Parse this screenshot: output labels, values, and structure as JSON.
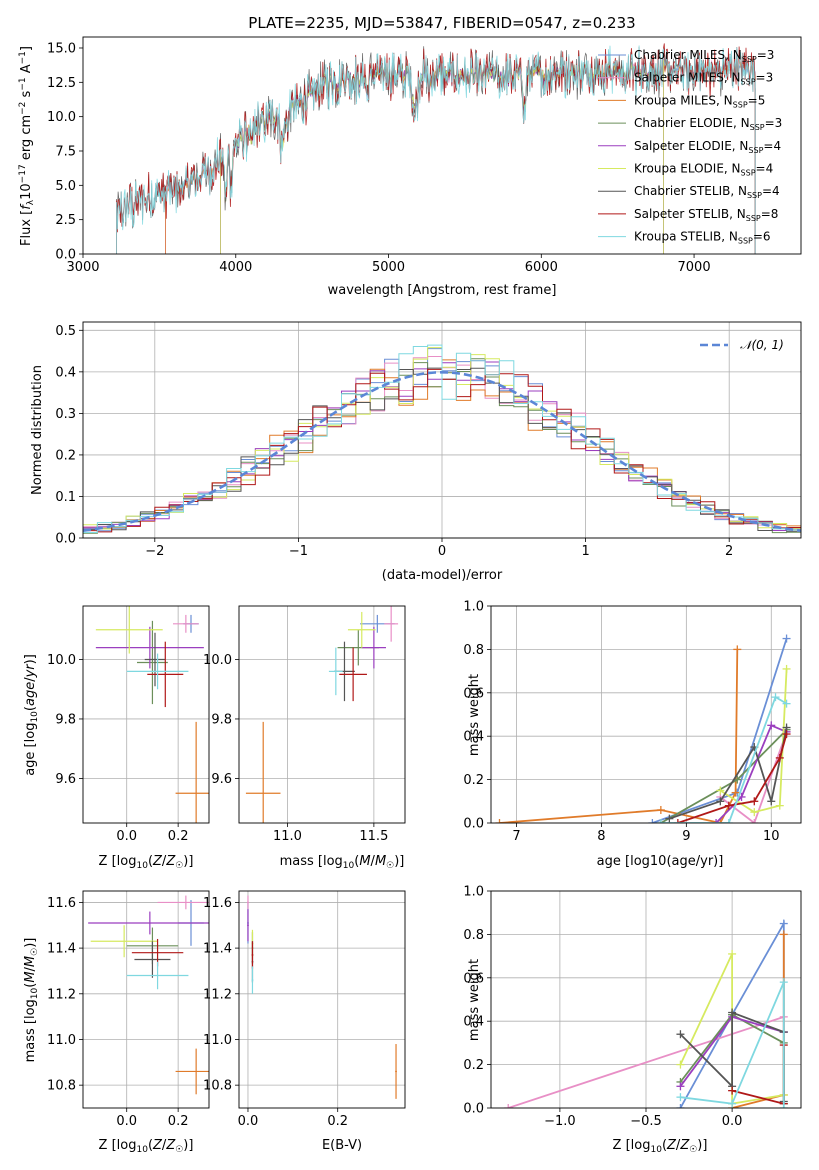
{
  "colors": {
    "Chabrier MILES": "#6a8fd6",
    "Salpeter MILES": "#e88fc6",
    "Kroupa MILES": "#e07b2a",
    "Chabrier ELODIE": "#6b8f5a",
    "Salpeter ELODIE": "#9b3fbf",
    "Kroupa ELODIE": "#d6ea60",
    "Chabrier STELIB": "#555555",
    "Salpeter STELIB": "#b01818",
    "Kroupa STELIB": "#7fd8e0",
    "normal": "#5b86d6"
  },
  "chart_data": [
    {
      "id": "spectrum",
      "type": "line",
      "title": "PLATE=2235, MJD=53847, FIBERID=0547, z=0.233",
      "xlabel": "wavelength [Angstrom, rest frame]",
      "ylabel": "Flux [f_λ 10^-17 erg cm^-2 s^-1 A^-1]",
      "xlim": [
        3000,
        7700
      ],
      "ylim": [
        0,
        15.8
      ],
      "xticks": [
        3000,
        4000,
        5000,
        6000,
        7000
      ],
      "yticks": [
        0.0,
        2.5,
        5.0,
        7.5,
        10.0,
        12.5,
        15.0
      ],
      "ytick_labels": [
        "0.0",
        "2.5",
        "5.0",
        "7.5",
        "10.0",
        "12.5",
        "15.0"
      ],
      "legend_position": "top-right",
      "legend": [
        {
          "name": "Chabrier MILES",
          "nssp": "3"
        },
        {
          "name": "Salpeter MILES",
          "nssp": "3"
        },
        {
          "name": "Kroupa MILES",
          "nssp": "5"
        },
        {
          "name": "Chabrier ELODIE",
          "nssp": "3"
        },
        {
          "name": "Salpeter ELODIE",
          "nssp": "4"
        },
        {
          "name": "Kroupa ELODIE",
          "nssp": "4"
        },
        {
          "name": "Chabrier STELIB",
          "nssp": "4"
        },
        {
          "name": "Salpeter STELIB",
          "nssp": "8"
        },
        {
          "name": "Kroupa STELIB",
          "nssp": "6"
        }
      ],
      "series_ranges": [
        {
          "name": "Chabrier MILES",
          "x": [
            3540,
            7400
          ]
        },
        {
          "name": "Salpeter MILES",
          "x": [
            3540,
            7400
          ]
        },
        {
          "name": "Kroupa MILES",
          "x": [
            3540,
            7400
          ]
        },
        {
          "name": "Chabrier ELODIE",
          "x": [
            3900,
            6800
          ]
        },
        {
          "name": "Salpeter ELODIE",
          "x": [
            3900,
            6800
          ]
        },
        {
          "name": "Kroupa ELODIE",
          "x": [
            3900,
            6800
          ]
        },
        {
          "name": "Chabrier STELIB",
          "x": [
            3220,
            7400
          ]
        },
        {
          "name": "Salpeter STELIB",
          "x": [
            3220,
            7400
          ]
        },
        {
          "name": "Kroupa STELIB",
          "x": [
            3220,
            7400
          ]
        }
      ],
      "continuum": [
        [
          3220,
          3.0
        ],
        [
          3500,
          4.4
        ],
        [
          3700,
          5.0
        ],
        [
          3900,
          6.8
        ],
        [
          4000,
          8.0
        ],
        [
          4200,
          9.8
        ],
        [
          4400,
          10.8
        ],
        [
          4600,
          12.4
        ],
        [
          4900,
          13.0
        ],
        [
          5200,
          13.2
        ],
        [
          5500,
          13.0
        ],
        [
          5800,
          12.9
        ],
        [
          6100,
          13.2
        ],
        [
          6400,
          13.3
        ],
        [
          6800,
          13.4
        ],
        [
          7100,
          13.3
        ],
        [
          7400,
          13.5
        ]
      ]
    },
    {
      "id": "residuals",
      "type": "bar",
      "xlabel": "(data-model)/error",
      "ylabel": "Normed distribution",
      "xlim": [
        -2.5,
        2.5
      ],
      "ylim": [
        0,
        0.52
      ],
      "xticks": [
        -2,
        -1,
        0,
        1,
        2
      ],
      "xtick_labels": [
        "−2",
        "−1",
        "0",
        "1",
        "2"
      ],
      "yticks": [
        0.0,
        0.1,
        0.2,
        0.3,
        0.4,
        0.5
      ],
      "ytick_labels": [
        "0.0",
        "0.1",
        "0.2",
        "0.3",
        "0.4",
        "0.5"
      ],
      "grid": true,
      "legend_position": "top-right",
      "legend_label": "𝒩(0, 1)",
      "bin_width": 0.1
    },
    {
      "id": "age_vs_Z",
      "type": "scatter",
      "xlabel": "Z [log10(Z/Z☉)]",
      "ylabel": "age [log10(age/yr)]",
      "xlim": [
        -0.17,
        0.32
      ],
      "ylim": [
        9.45,
        10.18
      ],
      "xticks": [
        0.0,
        0.2
      ],
      "xtick_labels": [
        "0.0",
        "0.2"
      ],
      "yticks": [
        9.6,
        9.8,
        10.0
      ],
      "ytick_labels": [
        "9.6",
        "9.8",
        "10.0"
      ],
      "points": [
        {
          "name": "Chabrier MILES",
          "x": 0.25,
          "y": 10.12,
          "xerr": 0.03,
          "yerr": 0.03
        },
        {
          "name": "Salpeter MILES",
          "x": 0.23,
          "y": 10.12,
          "xerr": 0.05,
          "yerr": 0.03
        },
        {
          "name": "Kroupa MILES",
          "x": 0.27,
          "y": 9.55,
          "xerr": 0.08,
          "yerr": 0.24
        },
        {
          "name": "Chabrier ELODIE",
          "x": 0.1,
          "y": 9.99,
          "xerr": 0.06,
          "yerr": 0.14
        },
        {
          "name": "Salpeter ELODIE",
          "x": 0.09,
          "y": 10.04,
          "xerr": 0.21,
          "yerr": 0.07
        },
        {
          "name": "Kroupa ELODIE",
          "x": 0.01,
          "y": 10.1,
          "xerr": 0.13,
          "yerr": 0.08
        },
        {
          "name": "Chabrier STELIB",
          "x": 0.11,
          "y": 10.0,
          "xerr": 0.04,
          "yerr": 0.09
        },
        {
          "name": "Salpeter STELIB",
          "x": 0.15,
          "y": 9.95,
          "xerr": 0.07,
          "yerr": 0.11
        },
        {
          "name": "Kroupa STELIB",
          "x": 0.12,
          "y": 9.96,
          "xerr": 0.12,
          "yerr": 0.06
        }
      ]
    },
    {
      "id": "age_vs_mass",
      "type": "scatter",
      "xlabel": "mass [log10(M/M☉)]",
      "ylabel": "",
      "xlim": [
        10.72,
        11.68
      ],
      "ylim": [
        9.45,
        10.18
      ],
      "xticks": [
        11.0,
        11.5
      ],
      "xtick_labels": [
        "11.0",
        "11.5"
      ],
      "yticks": [
        9.6,
        9.8,
        10.0
      ],
      "ytick_labels": [
        "9.6",
        "9.8",
        "10.0"
      ],
      "points": [
        {
          "name": "Chabrier MILES",
          "x": 11.52,
          "y": 10.12,
          "xerr": 0.1,
          "yerr": 0.03
        },
        {
          "name": "Salpeter MILES",
          "x": 11.6,
          "y": 10.12,
          "xerr": 0.04,
          "yerr": 0.06
        },
        {
          "name": "Kroupa MILES",
          "x": 10.86,
          "y": 9.55,
          "xerr": 0.1,
          "yerr": 0.24
        },
        {
          "name": "Chabrier ELODIE",
          "x": 11.41,
          "y": 10.04,
          "xerr": 0.12,
          "yerr": 0.06
        },
        {
          "name": "Salpeter ELODIE",
          "x": 11.5,
          "y": 10.04,
          "xerr": 0.07,
          "yerr": 0.07
        },
        {
          "name": "Kroupa ELODIE",
          "x": 11.43,
          "y": 10.1,
          "xerr": 0.08,
          "yerr": 0.06
        },
        {
          "name": "Chabrier STELIB",
          "x": 11.33,
          "y": 9.96,
          "xerr": 0.06,
          "yerr": 0.1
        },
        {
          "name": "Salpeter STELIB",
          "x": 11.38,
          "y": 9.95,
          "xerr": 0.08,
          "yerr": 0.09
        },
        {
          "name": "Kroupa STELIB",
          "x": 11.28,
          "y": 9.96,
          "xerr": 0.04,
          "yerr": 0.08
        }
      ]
    },
    {
      "id": "weight_vs_age",
      "type": "line",
      "xlabel": "age [log10(age/yr)]",
      "ylabel": "mass weight",
      "xlim": [
        6.7,
        10.35
      ],
      "ylim": [
        0,
        1.0
      ],
      "xticks": [
        7,
        8,
        9,
        10
      ],
      "xtick_labels": [
        "7",
        "8",
        "9",
        "10"
      ],
      "yticks": [
        0.0,
        0.2,
        0.4,
        0.6,
        0.8,
        1.0
      ],
      "ytick_labels": [
        "0.0",
        "0.2",
        "0.4",
        "0.6",
        "0.8",
        "1.0"
      ],
      "grid": true,
      "series": [
        {
          "name": "Chabrier MILES",
          "x": [
            8.6,
            9.6,
            10.18
          ],
          "y": [
            0.0,
            0.14,
            0.85
          ]
        },
        {
          "name": "Salpeter MILES",
          "x": [
            9.4,
            9.8,
            10.18
          ],
          "y": [
            0.12,
            0.0,
            0.42
          ]
        },
        {
          "name": "Kroupa MILES",
          "x": [
            6.8,
            8.7,
            9.4,
            9.58,
            9.6
          ],
          "y": [
            0.0,
            0.06,
            0.0,
            0.14,
            0.8
          ]
        },
        {
          "name": "Chabrier ELODIE",
          "x": [
            8.7,
            9.6,
            10.18
          ],
          "y": [
            0.0,
            0.2,
            0.43
          ]
        },
        {
          "name": "Salpeter ELODIE",
          "x": [
            9.35,
            9.65,
            10.0,
            10.18
          ],
          "y": [
            0.0,
            0.12,
            0.45,
            0.42
          ]
        },
        {
          "name": "Kroupa ELODIE",
          "x": [
            9.4,
            9.8,
            10.1,
            10.18
          ],
          "y": [
            0.15,
            0.05,
            0.08,
            0.71
          ]
        },
        {
          "name": "Chabrier STELIB",
          "x": [
            8.8,
            9.4,
            9.8,
            10.0,
            10.18
          ],
          "y": [
            0.02,
            0.1,
            0.35,
            0.1,
            0.44
          ]
        },
        {
          "name": "Salpeter STELIB",
          "x": [
            8.9,
            9.5,
            9.8,
            10.1,
            10.18
          ],
          "y": [
            0.0,
            0.08,
            0.1,
            0.3,
            0.41
          ]
        },
        {
          "name": "Kroupa STELIB",
          "x": [
            8.7,
            9.5,
            10.05,
            10.18
          ],
          "y": [
            0.0,
            0.0,
            0.58,
            0.55
          ]
        }
      ]
    },
    {
      "id": "mass_vs_Z",
      "type": "scatter",
      "xlabel": "Z [log10(Z/Z☉)]",
      "ylabel": "mass [log10(M/M☉)]",
      "xlim": [
        -0.17,
        0.32
      ],
      "ylim": [
        10.7,
        11.65
      ],
      "xticks": [
        0.0,
        0.2
      ],
      "xtick_labels": [
        "0.0",
        "0.2"
      ],
      "yticks": [
        10.8,
        11.0,
        11.2,
        11.4,
        11.6
      ],
      "ytick_labels": [
        "10.8",
        "11.0",
        "11.2",
        "11.4",
        "11.6"
      ],
      "points": [
        {
          "name": "Chabrier MILES",
          "x": 0.25,
          "y": 11.51,
          "xerr": 0.05,
          "yerr": 0.1
        },
        {
          "name": "Salpeter MILES",
          "x": 0.23,
          "y": 11.6,
          "xerr": 0.11,
          "yerr": 0.03
        },
        {
          "name": "Kroupa MILES",
          "x": 0.27,
          "y": 10.86,
          "xerr": 0.08,
          "yerr": 0.1
        },
        {
          "name": "Chabrier ELODIE",
          "x": 0.1,
          "y": 11.41,
          "xerr": 0.1,
          "yerr": 0.08
        },
        {
          "name": "Salpeter ELODIE",
          "x": 0.09,
          "y": 11.51,
          "xerr": 0.24,
          "yerr": 0.05
        },
        {
          "name": "Kroupa ELODIE",
          "x": -0.01,
          "y": 11.43,
          "xerr": 0.13,
          "yerr": 0.07
        },
        {
          "name": "Chabrier STELIB",
          "x": 0.1,
          "y": 11.35,
          "xerr": 0.07,
          "yerr": 0.08
        },
        {
          "name": "Salpeter STELIB",
          "x": 0.12,
          "y": 11.38,
          "xerr": 0.1,
          "yerr": 0.06
        },
        {
          "name": "Kroupa STELIB",
          "x": 0.12,
          "y": 11.28,
          "xerr": 0.12,
          "yerr": 0.06
        }
      ]
    },
    {
      "id": "mass_vs_ebv",
      "type": "scatter",
      "xlabel": "E(B-V)",
      "ylabel": "",
      "xlim": [
        -0.02,
        0.35
      ],
      "ylim": [
        10.7,
        11.65
      ],
      "xticks": [
        0.0,
        0.2
      ],
      "xtick_labels": [
        "0.0",
        "0.2"
      ],
      "yticks": [
        10.8,
        11.0,
        11.2,
        11.4,
        11.6
      ],
      "ytick_labels": [
        "10.8",
        "11.0",
        "11.2",
        "11.4",
        "11.6"
      ],
      "points": [
        {
          "name": "Chabrier MILES",
          "x": 0.0,
          "y": 11.51,
          "xerr": 0.002,
          "yerr": 0.09
        },
        {
          "name": "Salpeter MILES",
          "x": 0.0,
          "y": 11.6,
          "xerr": 0.002,
          "yerr": 0.03
        },
        {
          "name": "Kroupa MILES",
          "x": 0.33,
          "y": 10.86,
          "xerr": 0.002,
          "yerr": 0.12
        },
        {
          "name": "Chabrier ELODIE",
          "x": 0.01,
          "y": 11.4,
          "xerr": 0.002,
          "yerr": 0.07
        },
        {
          "name": "Salpeter ELODIE",
          "x": 0.0,
          "y": 11.5,
          "xerr": 0.002,
          "yerr": 0.07
        },
        {
          "name": "Kroupa ELODIE",
          "x": 0.01,
          "y": 11.42,
          "xerr": 0.002,
          "yerr": 0.06
        },
        {
          "name": "Chabrier STELIB",
          "x": 0.01,
          "y": 11.34,
          "xerr": 0.002,
          "yerr": 0.09
        },
        {
          "name": "Salpeter STELIB",
          "x": 0.01,
          "y": 11.37,
          "xerr": 0.002,
          "yerr": 0.06
        },
        {
          "name": "Kroupa STELIB",
          "x": 0.01,
          "y": 11.26,
          "xerr": 0.002,
          "yerr": 0.06
        }
      ]
    },
    {
      "id": "weight_vs_Z",
      "type": "line",
      "xlabel": "Z [log10(Z/Z☉)]",
      "ylabel": "mass weight",
      "xlim": [
        -1.4,
        0.4
      ],
      "ylim": [
        0,
        1.0
      ],
      "xticks": [
        -1.0,
        -0.5,
        0.0
      ],
      "xtick_labels": [
        "−1.0",
        "−0.5",
        "0.0"
      ],
      "yticks": [
        0.0,
        0.2,
        0.4,
        0.6,
        0.8,
        1.0
      ],
      "ytick_labels": [
        "0.0",
        "0.2",
        "0.4",
        "0.6",
        "0.8",
        "1.0"
      ],
      "grid": true,
      "series": [
        {
          "name": "Chabrier MILES",
          "x": [
            -0.3,
            0.0,
            0.3,
            0.3
          ],
          "y": [
            0.0,
            0.43,
            0.85,
            0.35
          ]
        },
        {
          "name": "Salpeter MILES",
          "x": [
            -1.3,
            0.3,
            0.3
          ],
          "y": [
            0.0,
            0.42,
            0.35
          ]
        },
        {
          "name": "Kroupa MILES",
          "x": [
            0.0,
            0.3,
            0.3
          ],
          "y": [
            0.0,
            0.06,
            0.8
          ]
        },
        {
          "name": "Chabrier ELODIE",
          "x": [
            -0.3,
            0.0,
            0.3,
            0.3
          ],
          "y": [
            0.12,
            0.43,
            0.3,
            0.02
          ]
        },
        {
          "name": "Salpeter ELODIE",
          "x": [
            -0.3,
            0.0,
            0.3
          ],
          "y": [
            0.1,
            0.42,
            0.35
          ]
        },
        {
          "name": "Kroupa ELODIE",
          "x": [
            -0.3,
            0.0,
            0.0,
            0.3
          ],
          "y": [
            0.2,
            0.71,
            0.02,
            0.06
          ]
        },
        {
          "name": "Chabrier STELIB",
          "x": [
            -0.3,
            0.0,
            0.0,
            0.3,
            0.3
          ],
          "y": [
            0.34,
            0.1,
            0.44,
            0.35,
            0.03
          ]
        },
        {
          "name": "Salpeter STELIB",
          "x": [
            0.0,
            0.3,
            0.3
          ],
          "y": [
            0.08,
            0.02,
            0.29
          ]
        },
        {
          "name": "Kroupa STELIB",
          "x": [
            -0.3,
            0.0,
            0.3,
            0.3
          ],
          "y": [
            0.05,
            0.02,
            0.58,
            0.0
          ]
        }
      ]
    }
  ]
}
